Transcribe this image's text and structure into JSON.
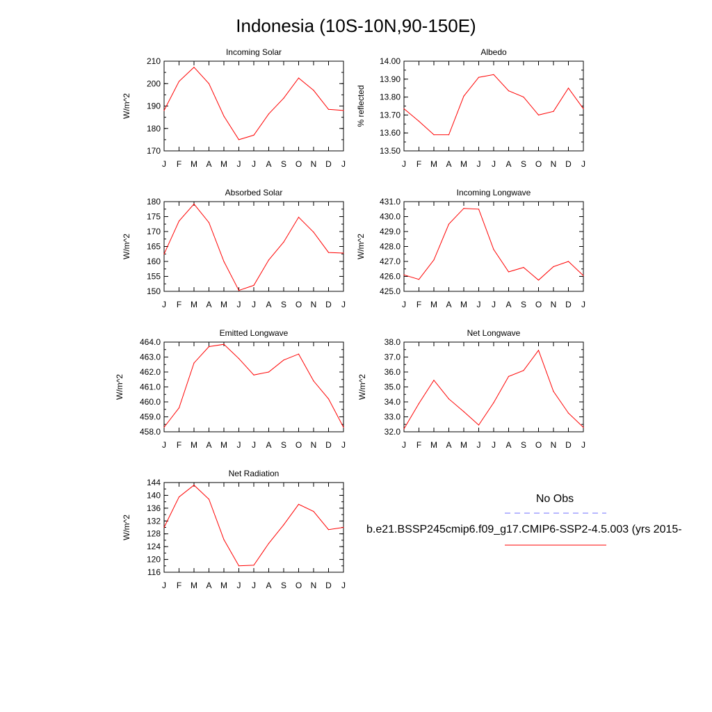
{
  "figure": {
    "title": "Indonesia (10S-10N,90-150E)"
  },
  "colors": {
    "model_line": "#ff0000",
    "obs_line": "#6f6fff",
    "axis": "#000000"
  },
  "chart_data": [
    {
      "type": "line",
      "title": "Incoming Solar",
      "ylabel": "W/m^2",
      "xlabel": "",
      "categories": [
        "J",
        "F",
        "M",
        "A",
        "M",
        "J",
        "J",
        "A",
        "S",
        "O",
        "N",
        "D",
        "J"
      ],
      "ylim": [
        170,
        210
      ],
      "yticks": [
        "210",
        "200",
        "190",
        "180",
        "170"
      ],
      "ytick_values": [
        210,
        200,
        190,
        180,
        170
      ],
      "series": [
        {
          "name": "b.e21.BSSP245cmip6.f09_g17.CMIP6-SSP2-4.5.003 (yrs 2015-",
          "values": [
            188,
            201,
            207.3,
            200,
            185.5,
            175,
            177,
            186.5,
            193.5,
            202.5,
            197,
            188.5,
            188
          ]
        }
      ]
    },
    {
      "type": "line",
      "title": "Albedo",
      "ylabel": "% reflected",
      "xlabel": "",
      "categories": [
        "J",
        "F",
        "M",
        "A",
        "M",
        "J",
        "J",
        "A",
        "S",
        "O",
        "N",
        "D",
        "J"
      ],
      "ylim": [
        13.5,
        14.0
      ],
      "yticks": [
        "14.00",
        "13.90",
        "13.80",
        "13.70",
        "13.60",
        "13.50"
      ],
      "ytick_values": [
        14.0,
        13.9,
        13.8,
        13.7,
        13.6,
        13.5
      ],
      "series": [
        {
          "name": "b.e21.BSSP245cmip6.f09_g17.CMIP6-SSP2-4.5.003 (yrs 2015-",
          "values": [
            13.735,
            13.665,
            13.59,
            13.59,
            13.805,
            13.91,
            13.925,
            13.835,
            13.8,
            13.7,
            13.72,
            13.85,
            13.735
          ]
        }
      ]
    },
    {
      "type": "line",
      "title": "Absorbed Solar",
      "ylabel": "W/m^2",
      "xlabel": "",
      "categories": [
        "J",
        "F",
        "M",
        "A",
        "M",
        "J",
        "J",
        "A",
        "S",
        "O",
        "N",
        "D",
        "J"
      ],
      "ylim": [
        150,
        180
      ],
      "yticks": [
        "180",
        "175",
        "170",
        "165",
        "160",
        "155",
        "150"
      ],
      "ytick_values": [
        180,
        175,
        170,
        165,
        160,
        155,
        150
      ],
      "series": [
        {
          "name": "b.e21.BSSP245cmip6.f09_g17.CMIP6-SSP2-4.5.003 (yrs 2015-",
          "values": [
            162.5,
            173.5,
            179.2,
            173,
            160,
            150.3,
            152,
            160.5,
            166.5,
            174.8,
            169.8,
            163,
            162.8
          ]
        }
      ]
    },
    {
      "type": "line",
      "title": "Incoming Longwave",
      "ylabel": "W/m^2",
      "xlabel": "",
      "categories": [
        "J",
        "F",
        "M",
        "A",
        "M",
        "J",
        "J",
        "A",
        "S",
        "O",
        "N",
        "D",
        "J"
      ],
      "ylim": [
        425,
        431
      ],
      "yticks": [
        "431.0",
        "430.0",
        "429.0",
        "428.0",
        "427.0",
        "426.0",
        "425.0"
      ],
      "ytick_values": [
        431,
        430,
        429,
        428,
        427,
        426,
        425
      ],
      "series": [
        {
          "name": "b.e21.BSSP245cmip6.f09_g17.CMIP6-SSP2-4.5.003 (yrs 2015-",
          "values": [
            426.1,
            425.8,
            427.1,
            429.5,
            430.55,
            430.5,
            427.8,
            426.3,
            426.6,
            425.75,
            426.65,
            427,
            426.05
          ]
        }
      ]
    },
    {
      "type": "line",
      "title": "Emitted Longwave",
      "ylabel": "W/m^2",
      "xlabel": "",
      "categories": [
        "J",
        "F",
        "M",
        "A",
        "M",
        "J",
        "J",
        "A",
        "S",
        "O",
        "N",
        "D",
        "J"
      ],
      "ylim": [
        458,
        464
      ],
      "yticks": [
        "464.0",
        "463.0",
        "462.0",
        "461.0",
        "460.0",
        "459.0",
        "458.0"
      ],
      "ytick_values": [
        464,
        463,
        462,
        461,
        460,
        459,
        458
      ],
      "series": [
        {
          "name": "b.e21.BSSP245cmip6.f09_g17.CMIP6-SSP2-4.5.003 (yrs 2015-",
          "values": [
            458.3,
            459.6,
            462.6,
            463.7,
            463.85,
            462.9,
            461.8,
            462,
            462.8,
            463.2,
            461.4,
            460.2,
            458.3
          ]
        }
      ]
    },
    {
      "type": "line",
      "title": "Net Longwave",
      "ylabel": "W/m^2",
      "xlabel": "",
      "categories": [
        "J",
        "F",
        "M",
        "A",
        "M",
        "J",
        "J",
        "A",
        "S",
        "O",
        "N",
        "D",
        "J"
      ],
      "ylim": [
        32,
        38
      ],
      "yticks": [
        "38.0",
        "37.0",
        "36.0",
        "35.0",
        "34.0",
        "33.0",
        "32.0"
      ],
      "ytick_values": [
        38,
        37,
        36,
        35,
        34,
        33,
        32
      ],
      "series": [
        {
          "name": "b.e21.BSSP245cmip6.f09_g17.CMIP6-SSP2-4.5.003 (yrs 2015-",
          "values": [
            32.2,
            33.9,
            35.45,
            34.2,
            33.35,
            32.45,
            33.95,
            35.7,
            36.1,
            37.45,
            34.7,
            33.25,
            32.3
          ]
        }
      ]
    },
    {
      "type": "line",
      "title": "Net Radiation",
      "ylabel": "W/m^2",
      "xlabel": "",
      "categories": [
        "J",
        "F",
        "M",
        "A",
        "M",
        "J",
        "J",
        "A",
        "S",
        "O",
        "N",
        "D",
        "J"
      ],
      "ylim": [
        116,
        144
      ],
      "yticks": [
        "144",
        "140",
        "136",
        "132",
        "128",
        "124",
        "120",
        "116"
      ],
      "ytick_values": [
        144,
        140,
        136,
        132,
        128,
        124,
        120,
        116
      ],
      "series": [
        {
          "name": "b.e21.BSSP245cmip6.f09_g17.CMIP6-SSP2-4.5.003 (yrs 2015-",
          "values": [
            130,
            139.5,
            143.2,
            138.8,
            126.2,
            118,
            118.2,
            125,
            130.8,
            137.2,
            135,
            129.3,
            130
          ]
        }
      ]
    }
  ],
  "legend": {
    "entries": [
      {
        "label": "No Obs",
        "color": "#6f6fff",
        "style": "dashed"
      },
      {
        "label": "b.e21.BSSP245cmip6.f09_g17.CMIP6-SSP2-4.5.003 (yrs 2015-",
        "color": "#ff0000",
        "style": "solid"
      }
    ]
  }
}
